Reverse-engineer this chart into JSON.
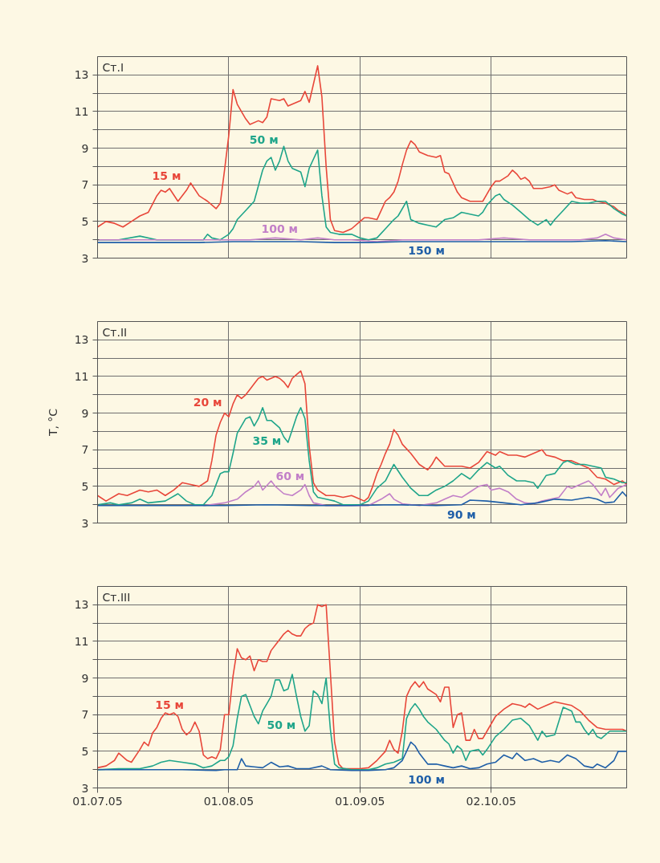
{
  "chart_data": [
    {
      "type": "line",
      "title": "Ст.I",
      "xlim": [
        "2005-07-01",
        "2005-11-03"
      ],
      "ylim": [
        3,
        14
      ],
      "grid": true,
      "tick_labels": "y",
      "xticks": [
        {
          "value": "2005-07-01",
          "label": null
        },
        {
          "value": "2005-08-01",
          "label": null
        },
        {
          "value": "2005-09-01",
          "label": null
        },
        {
          "value": "2005-10-02",
          "label": null
        }
      ],
      "yticks": [
        3,
        {
          "value": 4,
          "label": null
        },
        5,
        {
          "value": 6,
          "label": null
        },
        7,
        {
          "value": 8,
          "label": null
        },
        9,
        {
          "value": 10,
          "label": null
        },
        11,
        {
          "value": 12,
          "label": null
        },
        13
      ],
      "series": [
        {
          "name": "15 м",
          "color": "#e8473a",
          "x": [
            "2005-07-01",
            "2005-07-03",
            "2005-07-05",
            "2005-07-07",
            "2005-07-09",
            "2005-07-11",
            "2005-07-13",
            "2005-07-15",
            "2005-07-16",
            "2005-07-17",
            "2005-07-18",
            "2005-07-20",
            "2005-07-22",
            "2005-07-23",
            "2005-07-25",
            "2005-07-27",
            "2005-07-29",
            "2005-07-30",
            "2005-07-31",
            "2005-08-01",
            "2005-08-02",
            "2005-08-03",
            "2005-08-05",
            "2005-08-06",
            "2005-08-08",
            "2005-08-09",
            "2005-08-10",
            "2005-08-11",
            "2005-08-13",
            "2005-08-14",
            "2005-08-15",
            "2005-08-17",
            "2005-08-18",
            "2005-08-19",
            "2005-08-20",
            "2005-08-21",
            "2005-08-22",
            "2005-08-23",
            "2005-08-24",
            "2005-08-25",
            "2005-08-26",
            "2005-08-28",
            "2005-08-30",
            "2005-09-01",
            "2005-09-02",
            "2005-09-03",
            "2005-09-05",
            "2005-09-07",
            "2005-09-08",
            "2005-09-09",
            "2005-09-10",
            "2005-09-11",
            "2005-09-12",
            "2005-09-13",
            "2005-09-14",
            "2005-09-15",
            "2005-09-17",
            "2005-09-19",
            "2005-09-20",
            "2005-09-21",
            "2005-09-22",
            "2005-09-24",
            "2005-09-25",
            "2005-09-27",
            "2005-09-29",
            "2005-09-30",
            "2005-10-01",
            "2005-10-02",
            "2005-10-03",
            "2005-10-04",
            "2005-10-06",
            "2005-10-07",
            "2005-10-08",
            "2005-10-09",
            "2005-10-10",
            "2005-10-11",
            "2005-10-12",
            "2005-10-14",
            "2005-10-16",
            "2005-10-17",
            "2005-10-18",
            "2005-10-20",
            "2005-10-21",
            "2005-10-22",
            "2005-10-24",
            "2005-10-26",
            "2005-10-27",
            "2005-10-29",
            "2005-10-31",
            "2005-11-01",
            "2005-11-02",
            "2005-11-03"
          ],
          "values": [
            4.7,
            5.0,
            4.9,
            4.7,
            5.0,
            5.3,
            5.5,
            6.4,
            6.7,
            6.6,
            6.8,
            6.1,
            6.7,
            7.1,
            6.4,
            6.1,
            5.7,
            6.0,
            7.8,
            9.7,
            12.2,
            11.4,
            10.6,
            10.3,
            10.5,
            10.4,
            10.7,
            11.7,
            11.6,
            11.7,
            11.3,
            11.5,
            11.6,
            12.1,
            11.5,
            12.5,
            13.5,
            11.8,
            8.0,
            5.1,
            4.5,
            4.4,
            4.6,
            5.0,
            5.2,
            5.2,
            5.1,
            6.1,
            6.3,
            6.6,
            7.2,
            8.1,
            8.9,
            9.4,
            9.2,
            8.8,
            8.6,
            8.5,
            8.6,
            7.7,
            7.6,
            6.6,
            6.3,
            6.1,
            6.1,
            6.1,
            6.5,
            6.9,
            7.2,
            7.2,
            7.5,
            7.8,
            7.6,
            7.3,
            7.4,
            7.2,
            6.8,
            6.8,
            6.9,
            7.0,
            6.7,
            6.5,
            6.6,
            6.3,
            6.2,
            6.2,
            6.1,
            6.0,
            5.8,
            5.6,
            5.5,
            5.3
          ]
        },
        {
          "name": "50 м",
          "color": "#1fa58a",
          "x": [
            "2005-07-01",
            "2005-07-06",
            "2005-07-11",
            "2005-07-15",
            "2005-07-21",
            "2005-07-26",
            "2005-07-27",
            "2005-07-28",
            "2005-07-30",
            "2005-08-01",
            "2005-08-02",
            "2005-08-03",
            "2005-08-05",
            "2005-08-07",
            "2005-08-09",
            "2005-08-10",
            "2005-08-11",
            "2005-08-12",
            "2005-08-13",
            "2005-08-14",
            "2005-08-15",
            "2005-08-16",
            "2005-08-18",
            "2005-08-19",
            "2005-08-20",
            "2005-08-21",
            "2005-08-22",
            "2005-08-23",
            "2005-08-24",
            "2005-08-25",
            "2005-08-27",
            "2005-08-30",
            "2005-09-01",
            "2005-09-03",
            "2005-09-05",
            "2005-09-07",
            "2005-09-09",
            "2005-09-10",
            "2005-09-12",
            "2005-09-13",
            "2005-09-15",
            "2005-09-17",
            "2005-09-19",
            "2005-09-21",
            "2005-09-23",
            "2005-09-25",
            "2005-09-27",
            "2005-09-29",
            "2005-09-30",
            "2005-10-01",
            "2005-10-03",
            "2005-10-04",
            "2005-10-05",
            "2005-10-07",
            "2005-10-09",
            "2005-10-11",
            "2005-10-13",
            "2005-10-15",
            "2005-10-16",
            "2005-10-17",
            "2005-10-19",
            "2005-10-21",
            "2005-10-23",
            "2005-10-25",
            "2005-10-27",
            "2005-10-28",
            "2005-10-29",
            "2005-10-31",
            "2005-11-02",
            "2005-11-03"
          ],
          "values": [
            4.0,
            4.0,
            4.2,
            4.0,
            4.0,
            4.0,
            4.3,
            4.1,
            4.0,
            4.3,
            4.6,
            5.1,
            5.6,
            6.1,
            7.8,
            8.3,
            8.5,
            7.8,
            8.3,
            9.1,
            8.3,
            7.9,
            7.7,
            6.9,
            7.9,
            8.4,
            8.9,
            6.4,
            4.7,
            4.4,
            4.3,
            4.3,
            4.1,
            4.0,
            4.1,
            4.6,
            5.1,
            5.3,
            6.1,
            5.1,
            4.9,
            4.8,
            4.7,
            5.1,
            5.2,
            5.5,
            5.4,
            5.3,
            5.5,
            5.9,
            6.4,
            6.5,
            6.2,
            5.9,
            5.5,
            5.1,
            4.8,
            5.1,
            4.8,
            5.1,
            5.6,
            6.1,
            6.0,
            6.0,
            6.1,
            6.1,
            6.1,
            5.7,
            5.4,
            5.3
          ]
        },
        {
          "name": "100 м",
          "color": "#c27fc8",
          "x": [
            "2005-07-01",
            "2005-07-07",
            "2005-07-13",
            "2005-07-19",
            "2005-07-25",
            "2005-07-31",
            "2005-08-06",
            "2005-08-12",
            "2005-08-18",
            "2005-08-22",
            "2005-08-26",
            "2005-08-30",
            "2005-09-05",
            "2005-09-11",
            "2005-09-17",
            "2005-09-23",
            "2005-09-29",
            "2005-10-05",
            "2005-10-11",
            "2005-10-17",
            "2005-10-23",
            "2005-10-27",
            "2005-10-29",
            "2005-10-31",
            "2005-11-03"
          ],
          "values": [
            4.0,
            4.0,
            4.0,
            4.0,
            4.0,
            4.0,
            4.0,
            4.1,
            4.0,
            4.1,
            4.0,
            4.0,
            3.9,
            4.0,
            4.0,
            4.0,
            4.0,
            4.1,
            4.0,
            4.0,
            4.0,
            4.1,
            4.3,
            4.1,
            4.0
          ]
        },
        {
          "name": "150 м",
          "color": "#1f5fa8",
          "x": [
            "2005-07-01",
            "2005-07-09",
            "2005-07-17",
            "2005-07-25",
            "2005-08-02",
            "2005-08-10",
            "2005-08-18",
            "2005-08-26",
            "2005-09-03",
            "2005-09-11",
            "2005-09-19",
            "2005-09-27",
            "2005-10-05",
            "2005-10-13",
            "2005-10-21",
            "2005-10-29",
            "2005-11-03"
          ],
          "values": [
            3.85,
            3.85,
            3.85,
            3.85,
            3.9,
            3.9,
            3.9,
            3.85,
            3.85,
            3.9,
            3.9,
            3.9,
            3.9,
            3.9,
            3.9,
            3.95,
            3.9
          ]
        }
      ]
    },
    {
      "type": "line",
      "title": "Ст.II",
      "ylabel": "T, °C",
      "xlim": [
        "2005-07-01",
        "2005-11-03"
      ],
      "ylim": [
        3,
        14
      ],
      "grid": true,
      "tick_labels": "y",
      "xticks": [
        {
          "value": "2005-07-01",
          "label": null
        },
        {
          "value": "2005-08-01",
          "label": null
        },
        {
          "value": "2005-09-01",
          "label": null
        },
        {
          "value": "2005-10-02",
          "label": null
        }
      ],
      "yticks": [
        3,
        {
          "value": 4,
          "label": null
        },
        5,
        {
          "value": 6,
          "label": null
        },
        7,
        {
          "value": 8,
          "label": null
        },
        9,
        {
          "value": 10,
          "label": null
        },
        11,
        {
          "value": 12,
          "label": null
        },
        13
      ],
      "series": [
        {
          "name": "20 м",
          "color": "#e8473a",
          "x": [
            "2005-07-01",
            "2005-07-03",
            "2005-07-06",
            "2005-07-08",
            "2005-07-11",
            "2005-07-13",
            "2005-07-15",
            "2005-07-17",
            "2005-07-19",
            "2005-07-21",
            "2005-07-23",
            "2005-07-25",
            "2005-07-27",
            "2005-07-28",
            "2005-07-29",
            "2005-07-30",
            "2005-07-31",
            "2005-08-01",
            "2005-08-02",
            "2005-08-03",
            "2005-08-04",
            "2005-08-05",
            "2005-08-06",
            "2005-08-07",
            "2005-08-08",
            "2005-08-09",
            "2005-08-10",
            "2005-08-11",
            "2005-08-12",
            "2005-08-13",
            "2005-08-14",
            "2005-08-15",
            "2005-08-16",
            "2005-08-17",
            "2005-08-18",
            "2005-08-19",
            "2005-08-20",
            "2005-08-21",
            "2005-08-22",
            "2005-08-24",
            "2005-08-26",
            "2005-08-28",
            "2005-08-30",
            "2005-09-01",
            "2005-09-02",
            "2005-09-03",
            "2005-09-04",
            "2005-09-05",
            "2005-09-06",
            "2005-09-07",
            "2005-09-08",
            "2005-09-09",
            "2005-09-10",
            "2005-09-11",
            "2005-09-13",
            "2005-09-15",
            "2005-09-17",
            "2005-09-18",
            "2005-09-19",
            "2005-09-21",
            "2005-09-23",
            "2005-09-25",
            "2005-09-27",
            "2005-09-29",
            "2005-10-01",
            "2005-10-03",
            "2005-10-04",
            "2005-10-06",
            "2005-10-08",
            "2005-10-10",
            "2005-10-12",
            "2005-10-14",
            "2005-10-15",
            "2005-10-17",
            "2005-10-19",
            "2005-10-21",
            "2005-10-23",
            "2005-10-25",
            "2005-10-27",
            "2005-10-29",
            "2005-10-31",
            "2005-11-01",
            "2005-11-02",
            "2005-11-03"
          ],
          "values": [
            4.5,
            4.2,
            4.6,
            4.5,
            4.8,
            4.7,
            4.8,
            4.5,
            4.8,
            5.2,
            5.1,
            5.0,
            5.3,
            6.4,
            7.8,
            8.5,
            9.0,
            8.8,
            9.5,
            10.0,
            9.8,
            10.0,
            10.3,
            10.6,
            10.9,
            11.0,
            10.8,
            10.9,
            11.0,
            10.9,
            10.7,
            10.4,
            10.9,
            11.1,
            11.3,
            10.6,
            7.2,
            5.2,
            4.8,
            4.5,
            4.5,
            4.4,
            4.5,
            4.3,
            4.2,
            4.4,
            5.0,
            5.7,
            6.2,
            6.8,
            7.3,
            8.1,
            7.8,
            7.3,
            6.8,
            6.2,
            5.9,
            6.2,
            6.6,
            6.1,
            6.1,
            6.1,
            6.0,
            6.3,
            6.9,
            6.7,
            6.9,
            6.7,
            6.7,
            6.6,
            6.8,
            7.0,
            6.7,
            6.6,
            6.4,
            6.4,
            6.2,
            6.0,
            5.5,
            5.4,
            5.1,
            5.2,
            5.3,
            5.1
          ]
        },
        {
          "name": "35 м",
          "color": "#1fa58a",
          "x": [
            "2005-07-01",
            "2005-07-04",
            "2005-07-06",
            "2005-07-09",
            "2005-07-11",
            "2005-07-13",
            "2005-07-17",
            "2005-07-20",
            "2005-07-22",
            "2005-07-24",
            "2005-07-26",
            "2005-07-28",
            "2005-07-30",
            "2005-07-31",
            "2005-08-01",
            "2005-08-02",
            "2005-08-03",
            "2005-08-05",
            "2005-08-06",
            "2005-08-07",
            "2005-08-08",
            "2005-08-09",
            "2005-08-10",
            "2005-08-11",
            "2005-08-13",
            "2005-08-14",
            "2005-08-15",
            "2005-08-16",
            "2005-08-17",
            "2005-08-18",
            "2005-08-19",
            "2005-08-20",
            "2005-08-21",
            "2005-08-22",
            "2005-08-24",
            "2005-08-26",
            "2005-08-28",
            "2005-08-30",
            "2005-09-01",
            "2005-09-03",
            "2005-09-05",
            "2005-09-07",
            "2005-09-09",
            "2005-09-11",
            "2005-09-13",
            "2005-09-15",
            "2005-09-17",
            "2005-09-19",
            "2005-09-21",
            "2005-09-23",
            "2005-09-25",
            "2005-09-27",
            "2005-09-29",
            "2005-10-01",
            "2005-10-03",
            "2005-10-04",
            "2005-10-06",
            "2005-10-08",
            "2005-10-10",
            "2005-10-12",
            "2005-10-13",
            "2005-10-15",
            "2005-10-17",
            "2005-10-19",
            "2005-10-20",
            "2005-10-22",
            "2005-10-24",
            "2005-10-26",
            "2005-10-28",
            "2005-10-29",
            "2005-10-31",
            "2005-11-02",
            "2005-11-03"
          ],
          "values": [
            4.0,
            4.1,
            4.0,
            4.1,
            4.3,
            4.1,
            4.2,
            4.6,
            4.2,
            4.0,
            4.0,
            4.5,
            5.7,
            5.8,
            5.8,
            6.8,
            7.9,
            8.7,
            8.8,
            8.3,
            8.7,
            9.3,
            8.6,
            8.6,
            8.2,
            7.7,
            7.4,
            8.1,
            8.8,
            9.3,
            8.7,
            6.4,
            4.7,
            4.4,
            4.3,
            4.2,
            4.0,
            4.0,
            4.0,
            4.2,
            4.9,
            5.3,
            6.2,
            5.5,
            4.9,
            4.5,
            4.5,
            4.8,
            5.0,
            5.3,
            5.7,
            5.4,
            5.9,
            6.3,
            6.0,
            6.1,
            5.6,
            5.3,
            5.3,
            5.2,
            4.9,
            5.6,
            5.7,
            6.3,
            6.4,
            6.2,
            6.2,
            6.1,
            6.0,
            5.5,
            5.4,
            5.2,
            5.2
          ]
        },
        {
          "name": "60 м",
          "color": "#c27fc8",
          "x": [
            "2005-07-26",
            "2005-07-31",
            "2005-08-03",
            "2005-08-05",
            "2005-08-07",
            "2005-08-08",
            "2005-08-09",
            "2005-08-11",
            "2005-08-12",
            "2005-08-14",
            "2005-08-16",
            "2005-08-18",
            "2005-08-19",
            "2005-08-20",
            "2005-08-21",
            "2005-08-24",
            "2005-08-30",
            "2005-09-03",
            "2005-09-06",
            "2005-09-08",
            "2005-09-09",
            "2005-09-11",
            "2005-09-15",
            "2005-09-19",
            "2005-09-21",
            "2005-09-23",
            "2005-09-25",
            "2005-09-27",
            "2005-09-29",
            "2005-10-01",
            "2005-10-02",
            "2005-10-04",
            "2005-10-06",
            "2005-10-08",
            "2005-10-10",
            "2005-10-12",
            "2005-10-14",
            "2005-10-16",
            "2005-10-18",
            "2005-10-20",
            "2005-10-21",
            "2005-10-23",
            "2005-10-25",
            "2005-10-26",
            "2005-10-28",
            "2005-10-29",
            "2005-10-30",
            "2005-11-01",
            "2005-11-03"
          ],
          "values": [
            3.95,
            4.1,
            4.3,
            4.7,
            5.0,
            5.3,
            4.8,
            5.3,
            5.0,
            4.6,
            4.5,
            4.8,
            5.1,
            4.5,
            4.1,
            3.95,
            3.95,
            3.95,
            4.3,
            4.6,
            4.3,
            4.05,
            3.95,
            4.1,
            4.3,
            4.5,
            4.4,
            4.7,
            5.0,
            5.1,
            4.8,
            4.9,
            4.7,
            4.3,
            4.1,
            4.05,
            4.2,
            4.3,
            4.4,
            5.0,
            4.9,
            5.1,
            5.3,
            5.1,
            4.5,
            4.9,
            4.4,
            4.9,
            5.1
          ]
        },
        {
          "name": "90 м",
          "color": "#1f5fa8",
          "x": [
            "2005-07-01",
            "2005-07-11",
            "2005-07-21",
            "2005-07-31",
            "2005-08-10",
            "2005-08-20",
            "2005-08-30",
            "2005-09-09",
            "2005-09-19",
            "2005-09-25",
            "2005-09-27",
            "2005-10-01",
            "2005-10-05",
            "2005-10-09",
            "2005-10-13",
            "2005-10-17",
            "2005-10-21",
            "2005-10-25",
            "2005-10-27",
            "2005-10-29",
            "2005-10-31",
            "2005-11-02",
            "2005-11-03"
          ],
          "values": [
            3.95,
            3.95,
            3.95,
            3.95,
            4.0,
            3.95,
            3.95,
            4.0,
            3.95,
            4.0,
            4.25,
            4.2,
            4.1,
            4.0,
            4.1,
            4.3,
            4.25,
            4.4,
            4.3,
            4.1,
            4.15,
            4.7,
            4.45
          ]
        }
      ]
    },
    {
      "type": "line",
      "title": "Ст.III",
      "xlim": [
        "2005-07-01",
        "2005-11-03"
      ],
      "ylim": [
        3,
        14
      ],
      "grid": true,
      "xticks": [
        {
          "value": "2005-07-01",
          "label": "01.07.05"
        },
        {
          "value": "2005-08-01",
          "label": "01.08.05"
        },
        {
          "value": "2005-09-01",
          "label": "01.09.05"
        },
        {
          "value": "2005-10-02",
          "label": "02.10.05"
        }
      ],
      "yticks": [
        3,
        {
          "value": 4,
          "label": null
        },
        5,
        {
          "value": 6,
          "label": null
        },
        7,
        {
          "value": 8,
          "label": null
        },
        9,
        {
          "value": 10,
          "label": null
        },
        11,
        {
          "value": 12,
          "label": null
        },
        13
      ],
      "series": [
        {
          "name": "15 м",
          "color": "#e8473a",
          "x": [
            "2005-07-01",
            "2005-07-03",
            "2005-07-05",
            "2005-07-06",
            "2005-07-08",
            "2005-07-09",
            "2005-07-11",
            "2005-07-12",
            "2005-07-13",
            "2005-07-14",
            "2005-07-15",
            "2005-07-16",
            "2005-07-17",
            "2005-07-18",
            "2005-07-19",
            "2005-07-20",
            "2005-07-21",
            "2005-07-22",
            "2005-07-23",
            "2005-07-24",
            "2005-07-25",
            "2005-07-26",
            "2005-07-27",
            "2005-07-28",
            "2005-07-29",
            "2005-07-30",
            "2005-07-31",
            "2005-08-01",
            "2005-08-02",
            "2005-08-03",
            "2005-08-04",
            "2005-08-05",
            "2005-08-06",
            "2005-08-07",
            "2005-08-08",
            "2005-08-09",
            "2005-08-10",
            "2005-08-11",
            "2005-08-12",
            "2005-08-13",
            "2005-08-14",
            "2005-08-15",
            "2005-08-16",
            "2005-08-17",
            "2005-08-18",
            "2005-08-19",
            "2005-08-20",
            "2005-08-21",
            "2005-08-22",
            "2005-08-23",
            "2005-08-24",
            "2005-08-25",
            "2005-08-26",
            "2005-08-27",
            "2005-08-28",
            "2005-08-30",
            "2005-09-01",
            "2005-09-03",
            "2005-09-05",
            "2005-09-07",
            "2005-09-08",
            "2005-09-09",
            "2005-09-10",
            "2005-09-11",
            "2005-09-12",
            "2005-09-13",
            "2005-09-14",
            "2005-09-15",
            "2005-09-16",
            "2005-09-17",
            "2005-09-19",
            "2005-09-20",
            "2005-09-21",
            "2005-09-22",
            "2005-09-23",
            "2005-09-24",
            "2005-09-25",
            "2005-09-26",
            "2005-09-27",
            "2005-09-28",
            "2005-09-29",
            "2005-09-30",
            "2005-10-01",
            "2005-10-03",
            "2005-10-05",
            "2005-10-07",
            "2005-10-09",
            "2005-10-10",
            "2005-10-11",
            "2005-10-13",
            "2005-10-15",
            "2005-10-17",
            "2005-10-19",
            "2005-10-21",
            "2005-10-23",
            "2005-10-25",
            "2005-10-27",
            "2005-10-29",
            "2005-10-31",
            "2005-11-02",
            "2005-11-03"
          ],
          "values": [
            4.1,
            4.2,
            4.5,
            4.9,
            4.5,
            4.4,
            5.1,
            5.5,
            5.3,
            6.0,
            6.3,
            6.8,
            7.1,
            7.0,
            7.1,
            6.9,
            6.2,
            5.9,
            6.1,
            6.6,
            6.1,
            4.8,
            4.6,
            4.7,
            4.6,
            5.1,
            7.0,
            7.0,
            9.1,
            10.6,
            10.1,
            10.0,
            10.2,
            9.4,
            10.0,
            9.9,
            9.9,
            10.5,
            10.8,
            11.1,
            11.4,
            11.6,
            11.4,
            11.3,
            11.3,
            11.7,
            11.9,
            12.0,
            13.0,
            12.9,
            13.0,
            9.3,
            5.5,
            4.3,
            4.05,
            4.05,
            4.05,
            4.1,
            4.5,
            5.0,
            5.6,
            5.1,
            4.9,
            6.1,
            8.0,
            8.5,
            8.8,
            8.5,
            8.8,
            8.4,
            8.1,
            7.7,
            8.5,
            8.5,
            6.3,
            7.0,
            7.1,
            5.6,
            5.6,
            6.2,
            5.7,
            5.7,
            6.1,
            6.9,
            7.3,
            7.6,
            7.5,
            7.4,
            7.6,
            7.3,
            7.5,
            7.7,
            7.6,
            7.5,
            7.2,
            6.7,
            6.3,
            6.2,
            6.2,
            6.2,
            6.1
          ]
        },
        {
          "name": "50 м",
          "color": "#1fa58a",
          "x": [
            "2005-07-01",
            "2005-07-06",
            "2005-07-11",
            "2005-07-14",
            "2005-07-16",
            "2005-07-18",
            "2005-07-21",
            "2005-07-24",
            "2005-07-26",
            "2005-07-28",
            "2005-07-30",
            "2005-07-31",
            "2005-08-01",
            "2005-08-02",
            "2005-08-03",
            "2005-08-04",
            "2005-08-05",
            "2005-08-06",
            "2005-08-07",
            "2005-08-08",
            "2005-08-09",
            "2005-08-10",
            "2005-08-11",
            "2005-08-12",
            "2005-08-13",
            "2005-08-14",
            "2005-08-15",
            "2005-08-16",
            "2005-08-17",
            "2005-08-18",
            "2005-08-19",
            "2005-08-20",
            "2005-08-21",
            "2005-08-22",
            "2005-08-23",
            "2005-08-24",
            "2005-08-25",
            "2005-08-26",
            "2005-08-27",
            "2005-08-30",
            "2005-09-03",
            "2005-09-05",
            "2005-09-07",
            "2005-09-09",
            "2005-09-11",
            "2005-09-12",
            "2005-09-13",
            "2005-09-14",
            "2005-09-15",
            "2005-09-16",
            "2005-09-17",
            "2005-09-19",
            "2005-09-21",
            "2005-09-22",
            "2005-09-23",
            "2005-09-24",
            "2005-09-25",
            "2005-09-26",
            "2005-09-27",
            "2005-09-29",
            "2005-09-30",
            "2005-10-01",
            "2005-10-03",
            "2005-10-05",
            "2005-10-07",
            "2005-10-09",
            "2005-10-11",
            "2005-10-13",
            "2005-10-14",
            "2005-10-15",
            "2005-10-17",
            "2005-10-19",
            "2005-10-21",
            "2005-10-22",
            "2005-10-23",
            "2005-10-24",
            "2005-10-25",
            "2005-10-26",
            "2005-10-27",
            "2005-10-28",
            "2005-10-30",
            "2005-11-01",
            "2005-11-03"
          ],
          "values": [
            4.0,
            4.05,
            4.05,
            4.2,
            4.4,
            4.5,
            4.4,
            4.3,
            4.1,
            4.2,
            4.5,
            4.5,
            4.7,
            5.3,
            6.8,
            8.0,
            8.1,
            7.5,
            6.9,
            6.5,
            7.2,
            7.6,
            8.0,
            8.9,
            8.9,
            8.3,
            8.4,
            9.2,
            8.0,
            6.9,
            6.1,
            6.4,
            8.3,
            8.1,
            7.6,
            9.0,
            6.2,
            4.3,
            4.1,
            4.0,
            4.0,
            4.1,
            4.3,
            4.4,
            4.6,
            6.8,
            7.3,
            7.6,
            7.3,
            6.9,
            6.6,
            6.2,
            5.6,
            5.4,
            4.9,
            5.3,
            5.1,
            4.5,
            5.0,
            5.1,
            4.8,
            5.1,
            5.8,
            6.2,
            6.7,
            6.8,
            6.4,
            5.6,
            6.1,
            5.8,
            5.9,
            7.4,
            7.2,
            6.6,
            6.6,
            6.2,
            5.9,
            6.2,
            5.8,
            5.7,
            6.1,
            6.1,
            6.1
          ]
        },
        {
          "name": "100 м",
          "color": "#1f5fa8",
          "x": [
            "2005-07-01",
            "2005-07-11",
            "2005-07-21",
            "2005-07-29",
            "2005-07-31",
            "2005-08-03",
            "2005-08-04",
            "2005-08-05",
            "2005-08-07",
            "2005-08-09",
            "2005-08-11",
            "2005-08-13",
            "2005-08-15",
            "2005-08-17",
            "2005-08-20",
            "2005-08-23",
            "2005-08-25",
            "2005-08-30",
            "2005-09-03",
            "2005-09-07",
            "2005-09-09",
            "2005-09-11",
            "2005-09-12",
            "2005-09-13",
            "2005-09-14",
            "2005-09-15",
            "2005-09-17",
            "2005-09-19",
            "2005-09-21",
            "2005-09-23",
            "2005-09-25",
            "2005-09-27",
            "2005-09-29",
            "2005-10-01",
            "2005-10-03",
            "2005-10-05",
            "2005-10-07",
            "2005-10-08",
            "2005-10-10",
            "2005-10-12",
            "2005-10-14",
            "2005-10-16",
            "2005-10-18",
            "2005-10-20",
            "2005-10-22",
            "2005-10-24",
            "2005-10-26",
            "2005-10-27",
            "2005-10-29",
            "2005-10-31",
            "2005-11-01",
            "2005-11-02",
            "2005-11-03"
          ],
          "values": [
            4.0,
            4.0,
            4.0,
            3.95,
            4.0,
            4.0,
            4.6,
            4.2,
            4.15,
            4.1,
            4.4,
            4.15,
            4.2,
            4.05,
            4.05,
            4.2,
            4.0,
            3.95,
            3.95,
            4.0,
            4.1,
            4.5,
            5.0,
            5.5,
            5.3,
            4.9,
            4.3,
            4.3,
            4.2,
            4.1,
            4.2,
            4.05,
            4.1,
            4.3,
            4.4,
            4.8,
            4.6,
            4.9,
            4.5,
            4.6,
            4.4,
            4.5,
            4.4,
            4.8,
            4.6,
            4.2,
            4.1,
            4.3,
            4.1,
            4.5,
            5.0,
            5.0,
            5.0
          ]
        }
      ]
    }
  ]
}
